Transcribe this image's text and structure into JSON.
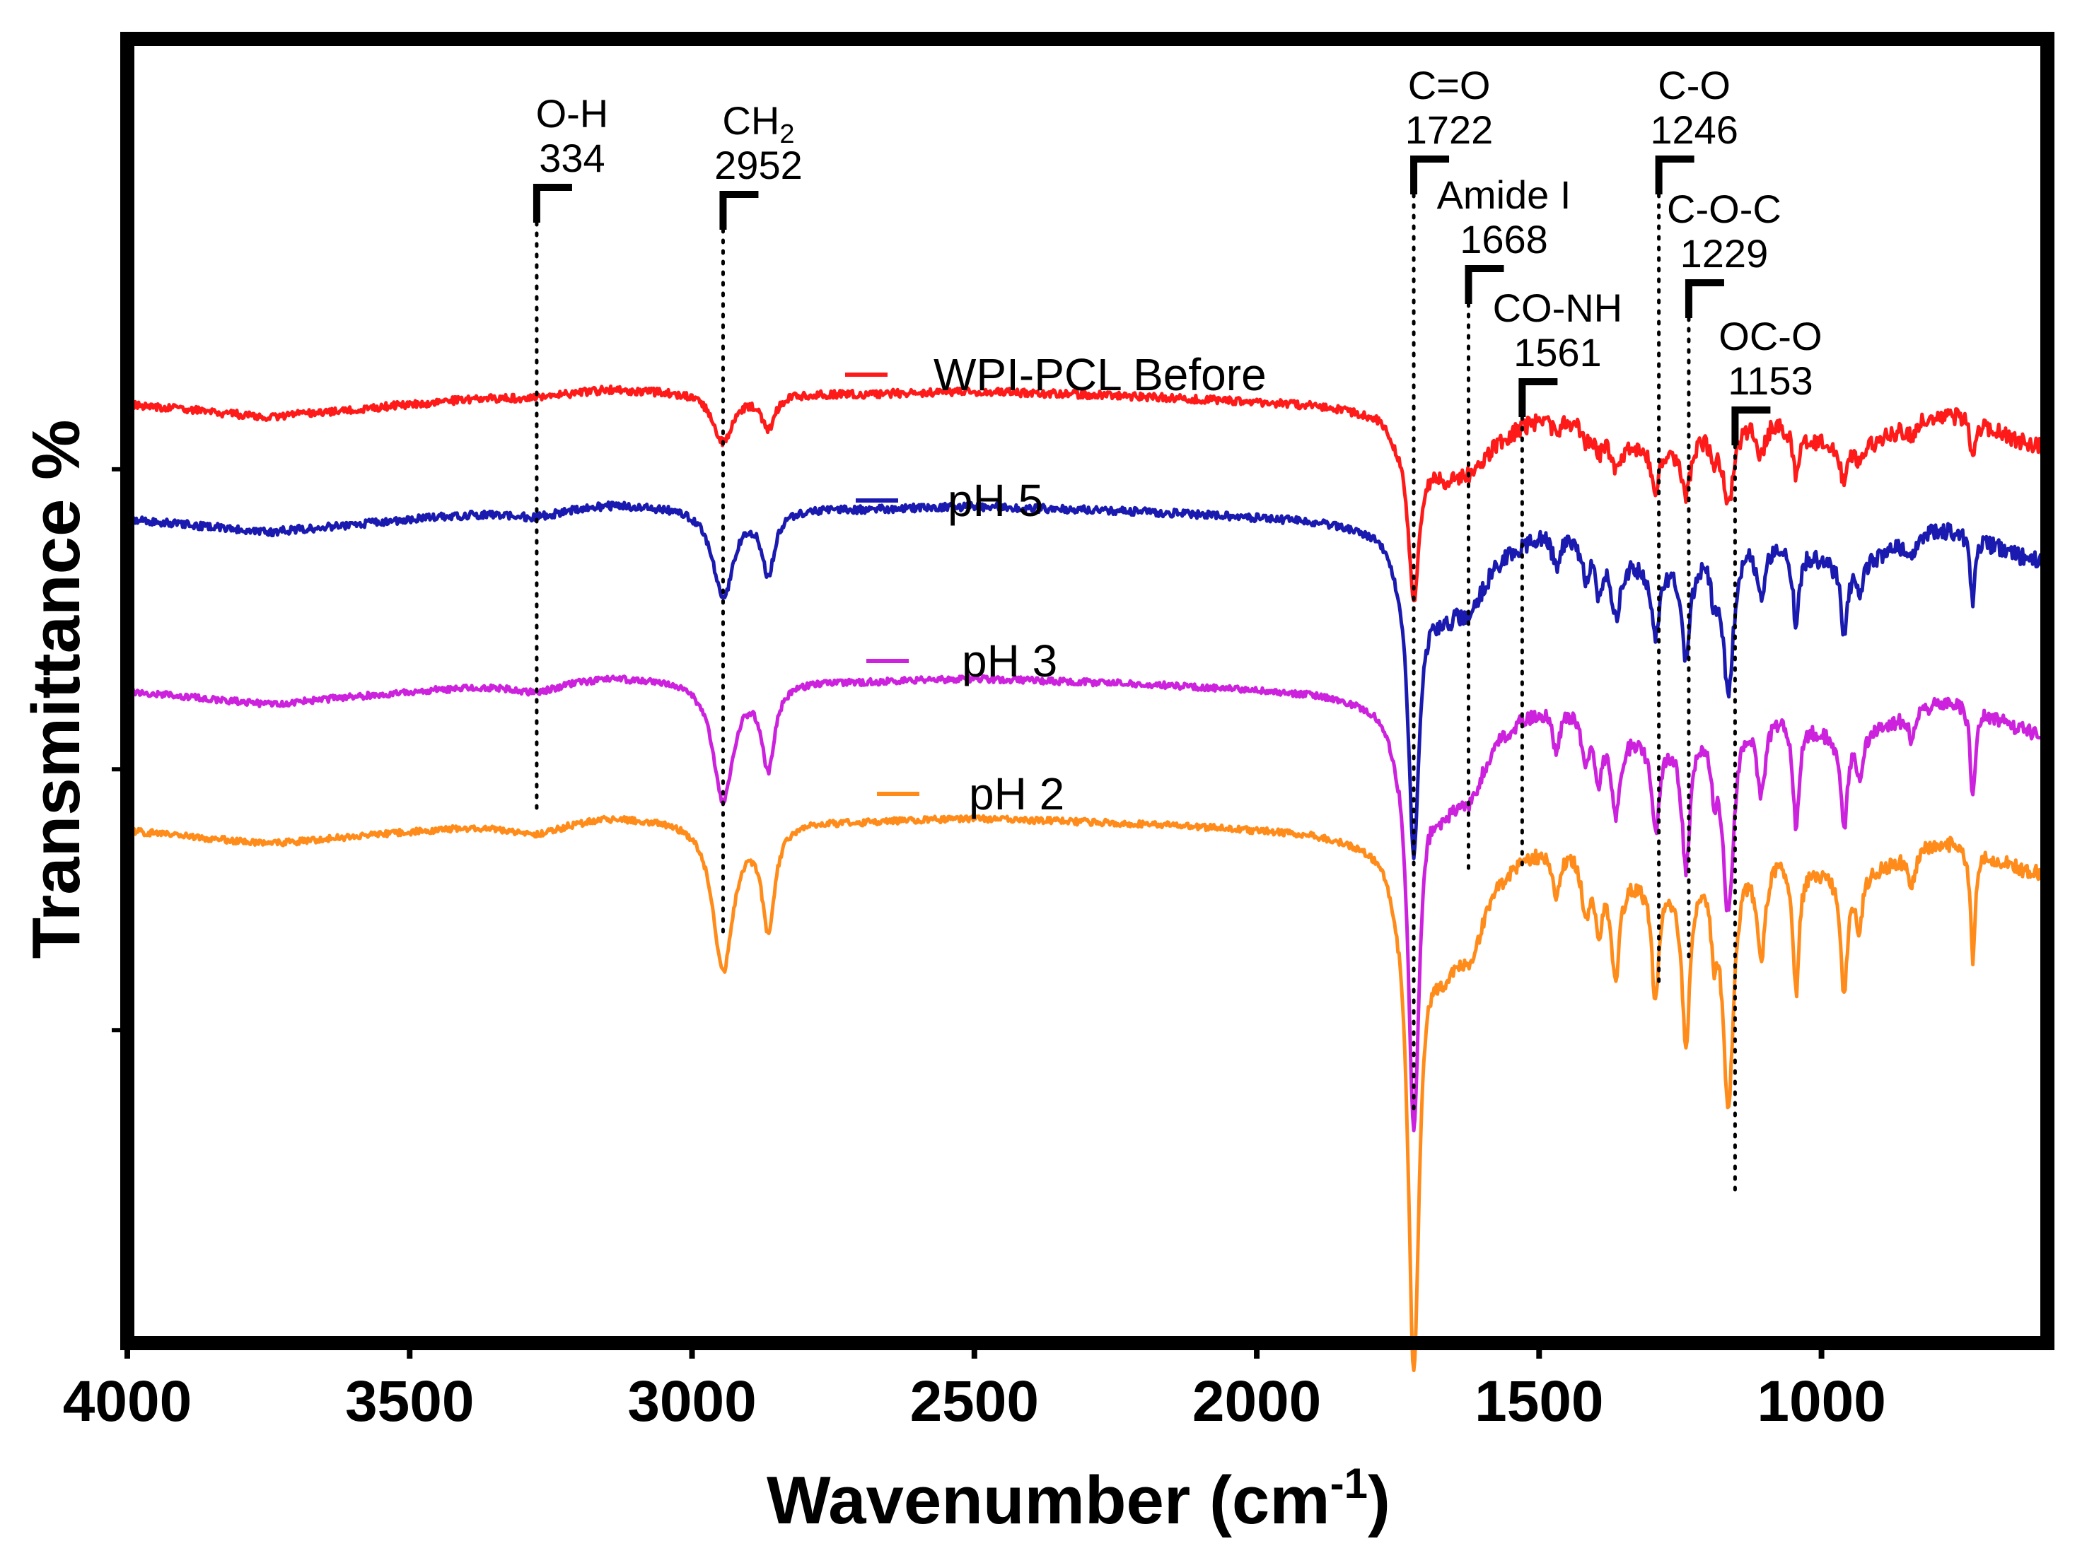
{
  "chart_data": {
    "type": "line",
    "title": "",
    "xlabel": "Wavenumber (cm",
    "xlabel_sup": "-1",
    "xlabel_close": ")",
    "ylabel": "Transmittance %",
    "xlim": [
      4000,
      600
    ],
    "ylim": [
      0,
      1
    ],
    "x_ticks": [
      4000,
      3500,
      3000,
      2500,
      2000,
      1500,
      1000
    ],
    "x_tick_labels": [
      "4000",
      "3500",
      "3000",
      "2500",
      "2000",
      "1500",
      "1000"
    ],
    "grid": false,
    "legend_position": "center",
    "series": [
      {
        "name": "WPI-PCL Before",
        "color": "#ff1a1a",
        "offset": 0.72,
        "scale": 0.33,
        "noise": 0.006,
        "seed": 11
      },
      {
        "name": "pH 5",
        "color": "#1a1ab0",
        "offset": 0.632,
        "scale": 0.6,
        "noise": 0.006,
        "seed": 23
      },
      {
        "name": "pH 3",
        "color": "#cc22dd",
        "offset": 0.5,
        "scale": 0.8,
        "noise": 0.005,
        "seed": 37
      },
      {
        "name": "pH 2",
        "color": "#ff8c1a",
        "offset": 0.393,
        "scale": 1.0,
        "noise": 0.005,
        "seed": 51
      }
    ],
    "base_shape": {
      "baseline_x": [
        4000,
        3750,
        3400,
        3150,
        3000,
        2700,
        2500,
        2200,
        1900,
        1780,
        1750
      ],
      "baseline_y": [
        0.0,
        -0.01,
        0.004,
        0.012,
        0.01,
        0.008,
        0.01,
        0.006,
        0.0,
        -0.006,
        -0.02
      ],
      "peaks": [
        {
          "x": 3275,
          "depth": 0.01,
          "width": 60
        },
        {
          "x": 2945,
          "depth": 0.115,
          "width": 22
        },
        {
          "x": 2865,
          "depth": 0.08,
          "width": 14
        },
        {
          "x": 1722,
          "depth": 0.37,
          "width": 12
        },
        {
          "x": 1670,
          "depth": 0.06,
          "width": 40
        },
        {
          "x": 1620,
          "depth": 0.04,
          "width": 25
        },
        {
          "x": 1470,
          "depth": 0.04,
          "width": 8
        },
        {
          "x": 1418,
          "depth": 0.045,
          "width": 8
        },
        {
          "x": 1395,
          "depth": 0.05,
          "width": 8
        },
        {
          "x": 1365,
          "depth": 0.08,
          "width": 10
        },
        {
          "x": 1294,
          "depth": 0.09,
          "width": 8
        },
        {
          "x": 1240,
          "depth": 0.13,
          "width": 9
        },
        {
          "x": 1190,
          "depth": 0.05,
          "width": 7
        },
        {
          "x": 1165,
          "depth": 0.19,
          "width": 12
        },
        {
          "x": 1107,
          "depth": 0.08,
          "width": 10
        },
        {
          "x": 1045,
          "depth": 0.1,
          "width": 7
        },
        {
          "x": 960,
          "depth": 0.09,
          "width": 7
        },
        {
          "x": 933,
          "depth": 0.04,
          "width": 6
        },
        {
          "x": 840,
          "depth": 0.025,
          "width": 8
        },
        {
          "x": 732,
          "depth": 0.09,
          "width": 5
        }
      ]
    },
    "annotations": [
      {
        "label": "O-H",
        "value": "334",
        "x": 3275
      },
      {
        "label": "CH",
        "sub": "2",
        "value": "2952",
        "x": 2945
      },
      {
        "label": "C=O",
        "value": "1722",
        "x": 1722
      },
      {
        "label": "Amide I",
        "value": "1668",
        "x": 1625
      },
      {
        "label": "CO-NH",
        "value": "1561",
        "x": 1530
      },
      {
        "label": "C-O",
        "value": "1246",
        "x": 1288
      },
      {
        "label": "C-O-C",
        "value": "1229",
        "x": 1235
      },
      {
        "label": "OC-O",
        "value": "1153",
        "x": 1153
      }
    ]
  }
}
